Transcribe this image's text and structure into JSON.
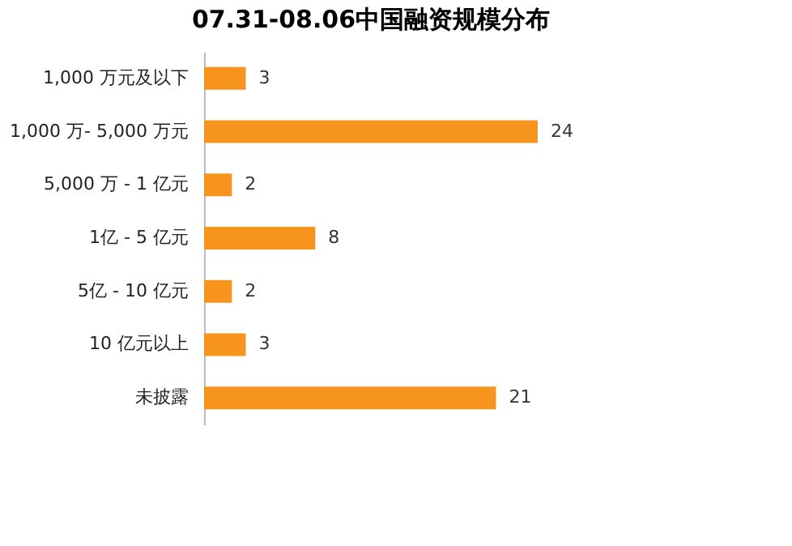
{
  "chart_data": {
    "type": "bar",
    "orientation": "horizontal",
    "title": "07.31-08.06中国融资规模分布",
    "categories": [
      "1,000 万元及以下",
      "1,000 万- 5,000 万元",
      "5,000 万 - 1 亿元",
      "1亿 - 5 亿元",
      "5亿 - 10 亿元",
      "10 亿元以上",
      "未披露"
    ],
    "values": [
      3,
      24,
      2,
      8,
      2,
      3,
      21
    ],
    "color": "#f7941d",
    "data_labels": true,
    "grid": false
  }
}
